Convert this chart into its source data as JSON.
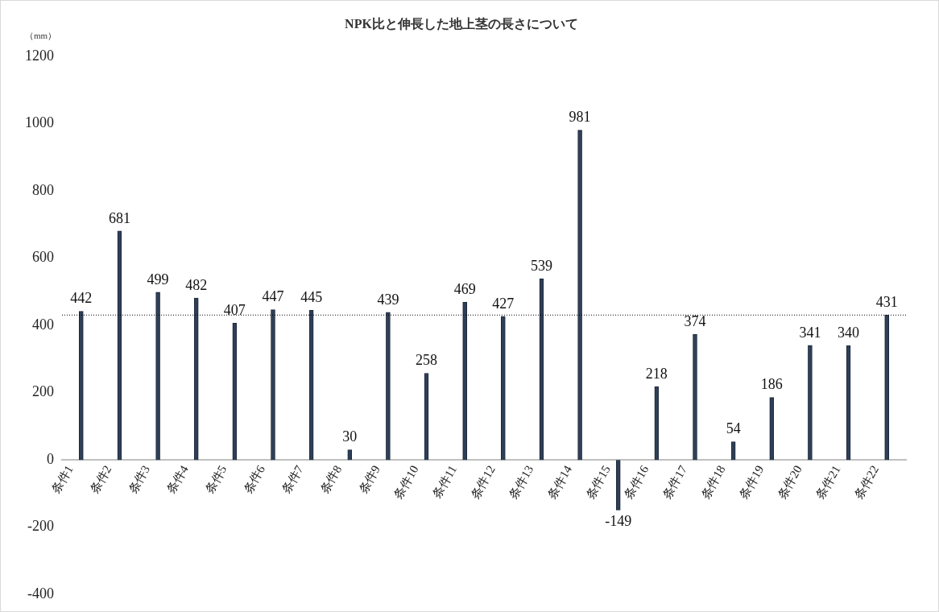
{
  "chart_data": {
    "type": "bar",
    "title": "NPK比と伸長した地上茎の長さについて",
    "ylabel": "（mm）",
    "categories": [
      "条件1",
      "条件2",
      "条件3",
      "条件4",
      "条件5",
      "条件6",
      "条件7",
      "条件8",
      "条件9",
      "条件10",
      "条件11",
      "条件12",
      "条件13",
      "条件14",
      "条件15",
      "条件16",
      "条件17",
      "条件18",
      "条件19",
      "条件20",
      "条件21",
      "条件22"
    ],
    "values": [
      442,
      681,
      499,
      482,
      407,
      447,
      445,
      30,
      439,
      258,
      469,
      427,
      539,
      981,
      -149,
      218,
      374,
      54,
      186,
      341,
      340,
      431
    ],
    "color": "#2e3f57",
    "ylim": [
      -400,
      1200
    ],
    "yticks": [
      -400,
      -200,
      0,
      200,
      400,
      600,
      800,
      1000,
      1200
    ],
    "grid": false,
    "legend": false,
    "data_labels": true,
    "ref_lines": [
      {
        "axis": "y",
        "value": 431,
        "line_style": "dotted",
        "color": "#000000"
      }
    ]
  }
}
